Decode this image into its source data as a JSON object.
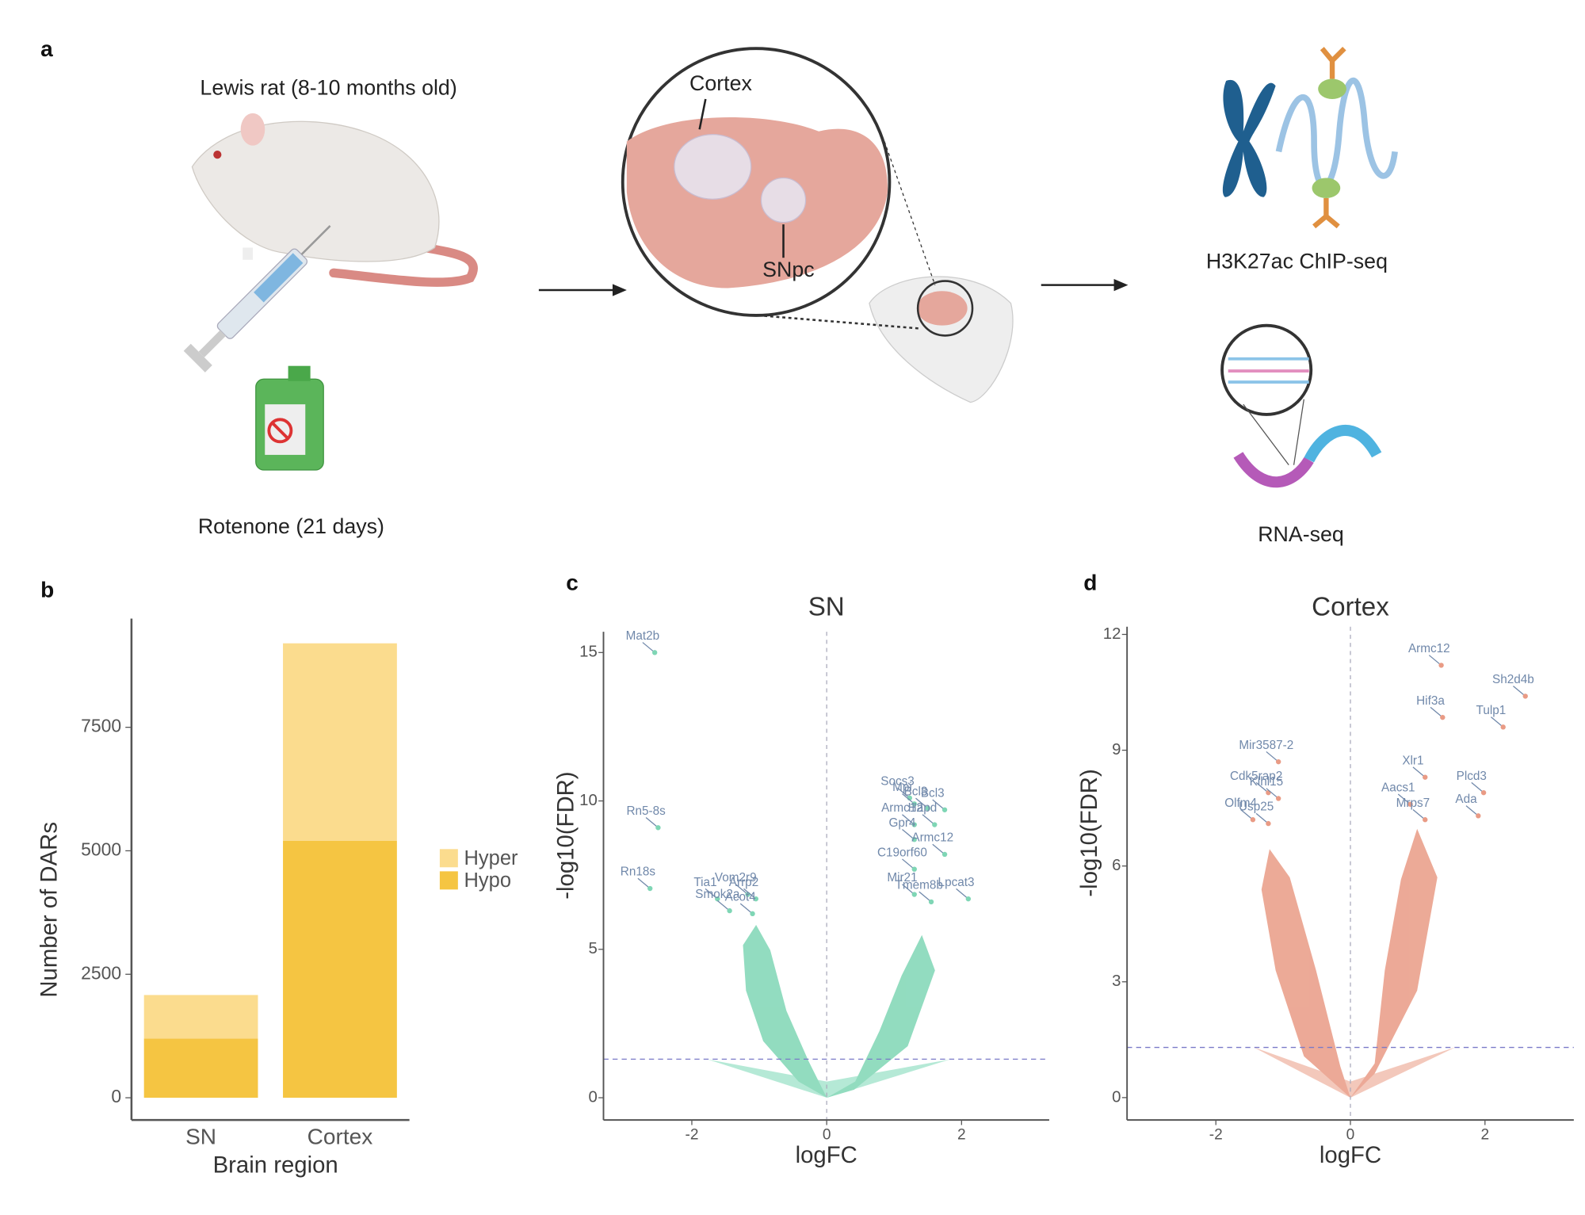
{
  "figure_a": {
    "panel_label": "a",
    "rat": "Lewis rat (8-10 months old)",
    "treatment": "Rotenone (21 days)",
    "region_1": "Cortex",
    "region_2": "SNpc",
    "assay_1": "H3K27ac ChIP-seq",
    "assay_2": "RNA-seq"
  },
  "chart_data": [
    {
      "type": "bar",
      "stacked": true,
      "panel_label": "b",
      "categories": [
        "SN",
        "Cortex"
      ],
      "series": [
        {
          "name": "Hyper",
          "color": "#fbdc8e",
          "values": [
            880,
            4000
          ]
        },
        {
          "name": "Hypo",
          "color": "#f5c542",
          "values": [
            1200,
            5200
          ]
        }
      ],
      "xlabel": "Brain region",
      "ylabel": "Number of DARs",
      "ylim": [
        -450,
        9700
      ],
      "yticks": [
        0,
        2500,
        5000,
        7500
      ],
      "legend": "right"
    },
    {
      "type": "scatter",
      "panel_label": "c",
      "title": "SN",
      "xlabel": "logFC",
      "ylabel": "-log10(FDR)",
      "xlim": [
        -3.31,
        3.3
      ],
      "ylim": [
        -0.75,
        15.7
      ],
      "xticks": [
        -2,
        0,
        2
      ],
      "yticks": [
        0,
        5,
        10,
        15
      ],
      "color": "#7fd6b5",
      "hline": 1.3,
      "vline": 0,
      "labels": [
        "Mat2b",
        "Rn5-8s",
        "Rn18s",
        "Tia1",
        "Vom2r9",
        "Smok2a",
        "Arrp2",
        "Acot4",
        "Socs3",
        "Bcl3",
        "Mpi",
        "Bcl3",
        "Armc12",
        "Hapd",
        "Gpr4",
        "Armc12",
        "C19orf60",
        "Lpcat3",
        "Mir21",
        "Tmem8b"
      ],
      "x": [
        -2.55,
        -2.5,
        -2.62,
        -1.62,
        -1.17,
        -1.44,
        -1.05,
        -1.1,
        1.23,
        1.5,
        1.3,
        1.75,
        1.3,
        1.6,
        1.3,
        1.75,
        1.3,
        2.1,
        1.3,
        1.55
      ],
      "values": [
        15.0,
        9.1,
        7.05,
        6.7,
        6.85,
        6.3,
        6.7,
        6.2,
        10.1,
        9.75,
        9.9,
        9.7,
        9.2,
        9.2,
        8.7,
        8.2,
        7.7,
        6.7,
        6.85,
        6.6
      ]
    },
    {
      "type": "scatter",
      "panel_label": "d",
      "title": "Cortex",
      "xlabel": "logFC",
      "ylabel": "-log10(FDR)",
      "xlim": [
        -3.32,
        3.32
      ],
      "ylim": [
        -0.58,
        12.2
      ],
      "xticks": [
        -2,
        0,
        2
      ],
      "yticks": [
        0,
        3,
        6,
        9,
        12
      ],
      "color": "#e99b85",
      "hline": 1.3,
      "vline": 0,
      "labels": [
        "Armc12",
        "Sh2d4b",
        "Hif3a",
        "Tulp1",
        "Xlr1",
        "Mir3587-2",
        "Cdk5rap2",
        "Klhl15",
        "Olfm4",
        "Usp25",
        "Aacs1",
        "Mrps7",
        "Plcd3",
        "Ada"
      ],
      "x": [
        1.35,
        2.6,
        1.37,
        2.27,
        1.11,
        -1.07,
        -1.22,
        -1.07,
        -1.45,
        -1.22,
        0.89,
        1.11,
        1.98,
        1.9
      ],
      "values": [
        11.2,
        10.4,
        9.85,
        9.6,
        8.3,
        8.7,
        7.9,
        7.75,
        7.2,
        7.1,
        7.6,
        7.2,
        7.9,
        7.3
      ]
    }
  ]
}
